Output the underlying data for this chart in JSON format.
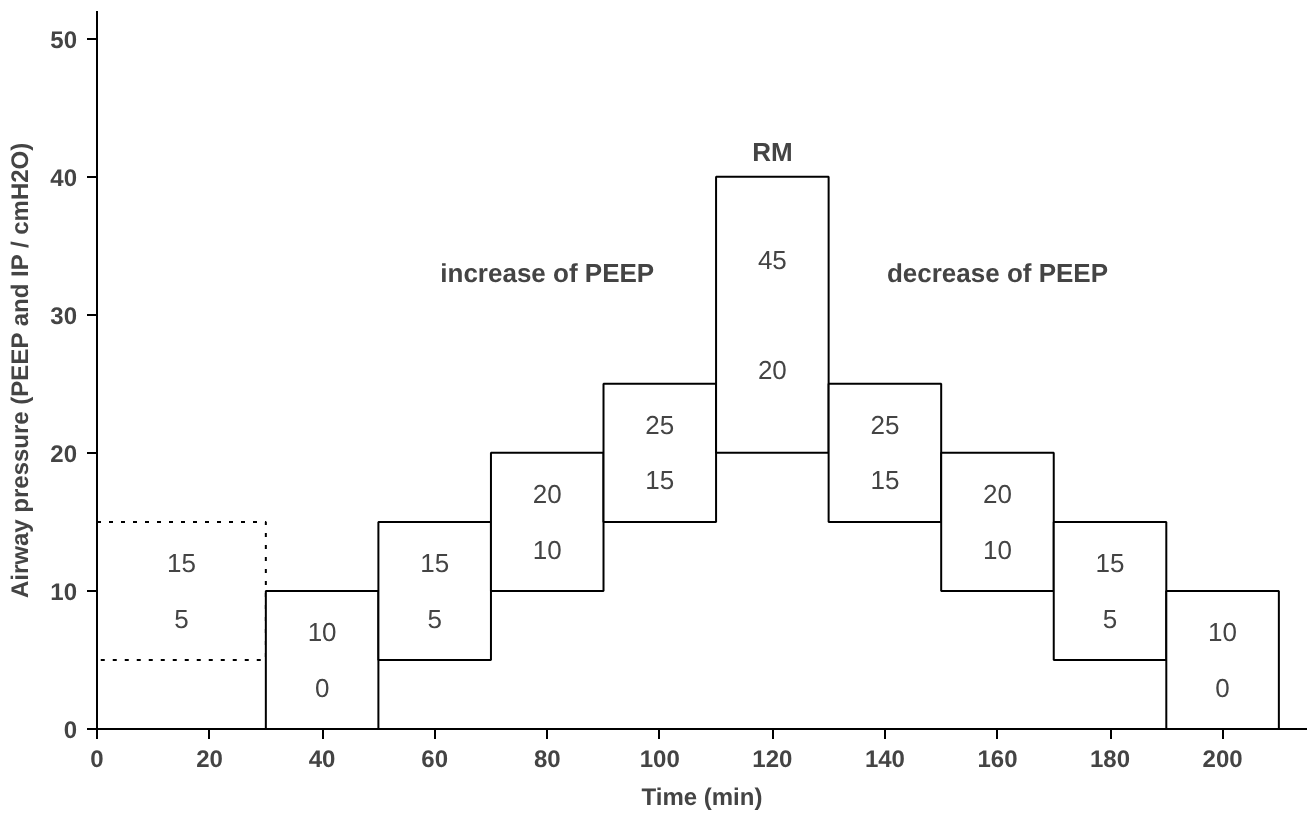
{
  "chart_data": {
    "type": "bar",
    "xlabel": "Time (min)",
    "ylabel": "Airway pressure (PEEP and IP / cmH2O)",
    "series": [
      {
        "x": [
          15
        ],
        "base": [
          5
        ],
        "values": [
          10
        ],
        "color": "#ffffff",
        "line_style": "dotted"
      },
      {
        "x": [
          40,
          60,
          80,
          100,
          120,
          140,
          160,
          180,
          200
        ],
        "base": [
          0,
          5,
          10,
          15,
          20,
          15,
          10,
          5,
          0
        ],
        "values": [
          10,
          10,
          10,
          10,
          20,
          10,
          10,
          10,
          10
        ],
        "color": "#ffffff",
        "line_style": "solid"
      }
    ],
    "xlim": [
      0,
      215
    ],
    "ylim": [
      0,
      52
    ],
    "xticks": [
      0,
      20,
      40,
      60,
      80,
      100,
      120,
      140,
      160,
      180,
      200
    ],
    "yticks": [
      0,
      10,
      20,
      30,
      40,
      50
    ],
    "grid": false,
    "annotations": [
      {
        "text": "15",
        "x": 15,
        "y": 15
      },
      {
        "text": "5",
        "x": 15,
        "y": 5
      },
      {
        "text": "10",
        "x": 40,
        "y": 10
      },
      {
        "text": "0",
        "x": 40,
        "y": 0
      },
      {
        "text": "15",
        "x": 60,
        "y": 15
      },
      {
        "text": "5",
        "x": 60,
        "y": 5
      },
      {
        "text": "20",
        "x": 80,
        "y": 20
      },
      {
        "text": "10",
        "x": 80,
        "y": 10
      },
      {
        "text": "25",
        "x": 100,
        "y": 25
      },
      {
        "text": "15",
        "x": 100,
        "y": 15
      },
      {
        "text": "45",
        "x": 120,
        "y": 40
      },
      {
        "text": "20",
        "x": 120,
        "y": 20
      },
      {
        "text": "25",
        "x": 140,
        "y": 25
      },
      {
        "text": "15",
        "x": 140,
        "y": 15
      },
      {
        "text": "20",
        "x": 160,
        "y": 20
      },
      {
        "text": "10",
        "x": 160,
        "y": 10
      },
      {
        "text": "15",
        "x": 180,
        "y": 15
      },
      {
        "text": "5",
        "x": 180,
        "y": 5
      },
      {
        "text": "10",
        "x": 200,
        "y": 10
      },
      {
        "text": "0",
        "x": 200,
        "y": 0
      },
      "RM",
      "increase of PEEP",
      "decrease of PEEP"
    ]
  }
}
